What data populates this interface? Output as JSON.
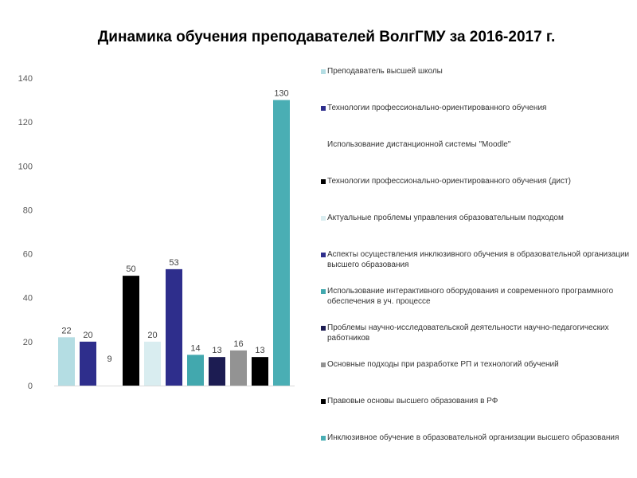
{
  "chart_data": {
    "type": "bar",
    "title": "Динамика обучения преподавателей ВолгГМУ за 2016-2017  г.",
    "ylim": [
      0,
      140
    ],
    "yticks": [
      0,
      20,
      40,
      60,
      80,
      100,
      120,
      140
    ],
    "grid": false,
    "legend_position": "right",
    "series": [
      {
        "name": "Преподаватель высшей школы",
        "value": 22,
        "label": "22",
        "color": "#b4dde3"
      },
      {
        "name": "Технологии профессионально-ориентированного обучения",
        "value": 20,
        "label": "20",
        "color": "#2e2e8c"
      },
      {
        "name": "Использование дистанционной системы \"Moodle\"",
        "value": 9,
        "label": "9",
        "color": "#ffffff"
      },
      {
        "name": "Технологии профессионально-ориентированного обучения (дист)",
        "value": 50,
        "label": "50",
        "color": "#000000"
      },
      {
        "name": "Актуальные проблемы управления образовательным подходом",
        "value": 20,
        "label": "20",
        "color": "#d9edf0"
      },
      {
        "name": "Аспекты осуществления инклюзивного обучения в образовательной организации высшего образования",
        "value": 53,
        "label": "53",
        "color": "#2e2e8c"
      },
      {
        "name": "Использование интерактивного оборудования и современного программного обеспечения в уч.  процессе",
        "value": 14,
        "label": "14",
        "color": "#42a8ae"
      },
      {
        "name": "Проблемы научно-исследовательской деятельности научно-педагогических работников",
        "value": 13,
        "label": "13",
        "color": "#1c1c52"
      },
      {
        "name": "Основные подходы при разработке РП и технологий обучений",
        "value": 16,
        "label": "16",
        "color": "#939393"
      },
      {
        "name": "Правовые основы высшего образования в РФ",
        "value": 13,
        "label": "13",
        "color": "#000000"
      },
      {
        "name": "Инклюзивное обучение в образовательной организации высшего образования",
        "value": 130,
        "label": "130",
        "color": "#4aaeb4"
      }
    ]
  }
}
